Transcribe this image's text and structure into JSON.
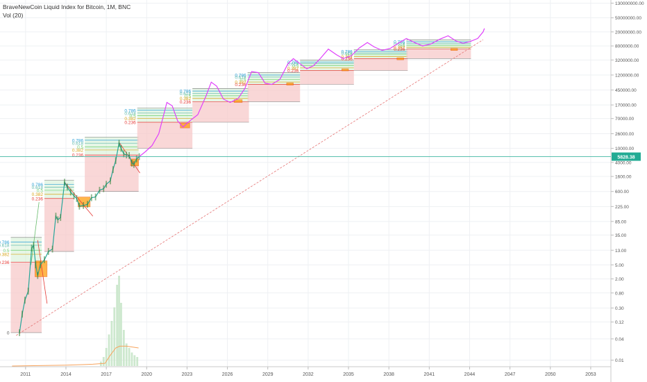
{
  "header": {
    "symbol_line": "BraveNewCoin Liquid Index for Bitcoin, 1M, BNC",
    "volume_line": "Vol (20)"
  },
  "colors": {
    "fib_box": "#f7c9c9",
    "fib_green": "#cdeecd",
    "fib_786": "#2a9fd6",
    "fib_618": "#5bb7a8",
    "fib_5": "#6fcf6f",
    "fib_382": "#d6a317",
    "fib_236": "#e53935",
    "price_tag": "#22ab94",
    "projection": "#e040fb",
    "buy_zone": "#ff9800",
    "volume": "#c8e6c9",
    "volume_ma": "#f7a35c",
    "trend": "#e57373"
  },
  "chart_data": {
    "type": "line",
    "title": "BraveNewCoin Liquid Index for Bitcoin, 1M, BNC",
    "y_scale": "log",
    "x_ticks": [
      "2011",
      "2014",
      "2017",
      "2020",
      "2023",
      "2026",
      "2029",
      "2032",
      "2035",
      "2038",
      "2041",
      "2044",
      "2047",
      "2050",
      "2053"
    ],
    "x_range": [
      2009.1,
      2054.5
    ],
    "y_ticks": [
      "0.01",
      "0.04",
      "0.12",
      "0.30",
      "0.80",
      "2.00",
      "5.00",
      "13.00",
      "35.00",
      "85.00",
      "225.00",
      "600.00",
      "1600.00",
      "4000.00",
      "10000.00",
      "26000.00",
      "70000.00",
      "170000.00",
      "450000.00",
      "1200000.00",
      "3200000.00",
      "8000000.00",
      "20000000.00",
      "50000000.00",
      "130000000.00"
    ],
    "y_range": [
      0.0065,
      160000000
    ],
    "current_price": "5828.38",
    "price_history": [
      [
        2010.55,
        0.06
      ],
      [
        2010.75,
        0.2
      ],
      [
        2010.95,
        0.5
      ],
      [
        2011.2,
        0.9
      ],
      [
        2011.45,
        15
      ],
      [
        2011.6,
        18
      ],
      [
        2011.75,
        5
      ],
      [
        2011.9,
        2.5
      ],
      [
        2012.1,
        5
      ],
      [
        2012.4,
        7
      ],
      [
        2012.7,
        12
      ],
      [
        2013.0,
        14
      ],
      [
        2013.25,
        120
      ],
      [
        2013.4,
        95
      ],
      [
        2013.6,
        110
      ],
      [
        2013.9,
        1100
      ],
      [
        2014.1,
        800
      ],
      [
        2014.35,
        580
      ],
      [
        2014.6,
        450
      ],
      [
        2014.8,
        380
      ],
      [
        2015.0,
        230
      ],
      [
        2015.3,
        240
      ],
      [
        2015.6,
        260
      ],
      [
        2015.9,
        400
      ],
      [
        2016.2,
        420
      ],
      [
        2016.5,
        650
      ],
      [
        2016.8,
        720
      ],
      [
        2017.0,
        960
      ],
      [
        2017.3,
        1200
      ],
      [
        2017.5,
        2500
      ],
      [
        2017.7,
        4500
      ],
      [
        2017.95,
        14000
      ],
      [
        2018.1,
        10000
      ],
      [
        2018.3,
        7000
      ],
      [
        2018.5,
        6500
      ],
      [
        2018.7,
        6300
      ],
      [
        2018.9,
        3800
      ],
      [
        2019.05,
        3500
      ],
      [
        2019.25,
        5000
      ],
      [
        2019.45,
        5828
      ]
    ],
    "projection": [
      [
        2019.45,
        5828
      ],
      [
        2019.9,
        8000
      ],
      [
        2020.4,
        12000
      ],
      [
        2020.9,
        26000
      ],
      [
        2021.5,
        200000
      ],
      [
        2021.9,
        160000
      ],
      [
        2022.3,
        60000
      ],
      [
        2022.7,
        40000
      ],
      [
        2023.2,
        60000
      ],
      [
        2023.8,
        90000
      ],
      [
        2024.4,
        300000
      ],
      [
        2024.8,
        750000
      ],
      [
        2025.2,
        580000
      ],
      [
        2025.7,
        250000
      ],
      [
        2026.2,
        200000
      ],
      [
        2026.8,
        260000
      ],
      [
        2027.3,
        500000
      ],
      [
        2027.8,
        1500000
      ],
      [
        2028.3,
        1400000
      ],
      [
        2028.8,
        700000
      ],
      [
        2029.3,
        650000
      ],
      [
        2029.9,
        900000
      ],
      [
        2030.5,
        2500000
      ],
      [
        2030.9,
        3500000
      ],
      [
        2031.4,
        2500000
      ],
      [
        2031.9,
        1800000
      ],
      [
        2032.4,
        2200000
      ],
      [
        2032.9,
        3500000
      ],
      [
        2033.5,
        6500000
      ],
      [
        2034.1,
        4500000
      ],
      [
        2034.6,
        3500000
      ],
      [
        2035.2,
        4200000
      ],
      [
        2035.8,
        7000000
      ],
      [
        2036.4,
        10000000
      ],
      [
        2036.9,
        7500000
      ],
      [
        2037.5,
        6000000
      ],
      [
        2038.1,
        6800000
      ],
      [
        2038.7,
        9500000
      ],
      [
        2039.3,
        13000000
      ],
      [
        2039.9,
        10000000
      ],
      [
        2040.5,
        8000000
      ],
      [
        2041.1,
        9000000
      ],
      [
        2041.8,
        12500000
      ],
      [
        2042.4,
        15500000
      ],
      [
        2043.0,
        11000000
      ],
      [
        2043.5,
        9500000
      ],
      [
        2044.0,
        10500000
      ],
      [
        2044.6,
        13000000
      ],
      [
        2045.0,
        20000000
      ],
      [
        2045.1,
        25000000
      ]
    ],
    "fib_boxes": [
      {
        "x0": 2009.9,
        "x1": 2012.2,
        "low": 0.06,
        "l236": 6,
        "l382": 10,
        "l5": 13,
        "l618": 18,
        "l786": 22,
        "top": 30,
        "labels": [
          "0.786",
          "0.618",
          "0.5",
          "0.382",
          "0.236",
          "0"
        ]
      },
      {
        "x0": 2012.4,
        "x1": 2014.6,
        "low": 12,
        "l236": 380,
        "l382": 500,
        "l5": 650,
        "l618": 800,
        "l786": 950,
        "top": 1250,
        "labels": [
          "0.786",
          "0.618",
          "0.5",
          "0.382",
          "0.236"
        ]
      },
      {
        "x0": 2015.4,
        "x1": 2019.4,
        "low": 600,
        "l236": 6500,
        "l382": 9000,
        "l5": 11000,
        "l618": 14000,
        "l786": 17000,
        "top": 21000,
        "labels": [
          "0.786",
          "0.618",
          "0.5",
          "0.382",
          "0.236"
        ]
      },
      {
        "x0": 2019.3,
        "x1": 2023.4,
        "low": 10000,
        "l236": 55000,
        "l382": 70000,
        "l5": 85000,
        "l618": 100000,
        "l786": 120000,
        "top": 140000,
        "labels": [
          "0.786",
          "0.618",
          "0.5",
          "0.382",
          "0.236"
        ]
      },
      {
        "x0": 2023.4,
        "x1": 2027.6,
        "low": 55000,
        "l236": 210000,
        "l382": 260000,
        "l5": 310000,
        "l618": 360000,
        "l786": 420000,
        "top": 500000,
        "labels": [
          "0.786",
          "0.618",
          "0.5",
          "0.382",
          "0.236"
        ]
      },
      {
        "x0": 2027.5,
        "x1": 2031.4,
        "low": 210000,
        "l236": 650000,
        "l382": 760000,
        "l5": 900000,
        "l618": 1050000,
        "l786": 1200000,
        "top": 1400000,
        "labels": [
          "0.786",
          "0.618",
          "0.5",
          "0.382",
          "0.236"
        ]
      },
      {
        "x0": 2031.4,
        "x1": 2035.4,
        "low": 650000,
        "l236": 1600000,
        "l382": 1900000,
        "l5": 2200000,
        "l618": 2500000,
        "l786": 2800000,
        "top": 3200000,
        "labels": [
          "0.786",
          "0.618",
          "0.5",
          "0.382",
          "0.236"
        ]
      },
      {
        "x0": 2035.4,
        "x1": 2039.4,
        "low": 1600000,
        "l236": 3500000,
        "l382": 4000000,
        "l5": 4500000,
        "l618": 5000000,
        "l786": 5600000,
        "top": 6300000,
        "labels": [
          "0.786",
          "0.618",
          "0.5",
          "0.382",
          "0.236"
        ]
      },
      {
        "x0": 2039.3,
        "x1": 2044.1,
        "low": 3500000,
        "l236": 6500000,
        "l382": 7300000,
        "l5": 8200000,
        "l618": 9200000,
        "l786": 10500000,
        "top": 12000000,
        "labels": [
          "0.786",
          "0.618",
          "0.5",
          "0.382",
          "0.236"
        ]
      }
    ],
    "buy_zones": [
      {
        "x0": 2011.7,
        "x1": 2012.6,
        "lo": 2.3,
        "hi": 6.5
      },
      {
        "x0": 2014.9,
        "x1": 2015.8,
        "lo": 220,
        "hi": 420
      },
      {
        "x0": 2018.8,
        "x1": 2019.4,
        "lo": 3200,
        "hi": 5000
      },
      {
        "x0": 2022.5,
        "x1": 2023.2,
        "lo": 38000,
        "hi": 52000
      },
      {
        "x0": 2026.5,
        "x1": 2027.1,
        "lo": 200000,
        "hi": 240000
      },
      {
        "x0": 2030.4,
        "x1": 2030.9,
        "lo": 620000,
        "hi": 720000
      },
      {
        "x0": 2034.5,
        "x1": 2035.0,
        "lo": 1600000,
        "hi": 1800000
      },
      {
        "x0": 2038.6,
        "x1": 2039.1,
        "lo": 3300000,
        "hi": 3700000
      },
      {
        "x0": 2042.6,
        "x1": 2043.1,
        "lo": 6200000,
        "hi": 6800000
      }
    ],
    "volume_bars": [
      [
        2016.6,
        0.05
      ],
      [
        2016.8,
        0.1
      ],
      [
        2017.0,
        0.2
      ],
      [
        2017.2,
        0.35
      ],
      [
        2017.4,
        0.5
      ],
      [
        2017.6,
        0.65
      ],
      [
        2017.8,
        0.9
      ],
      [
        2017.95,
        1.0
      ],
      [
        2018.1,
        0.7
      ],
      [
        2018.3,
        0.4
      ],
      [
        2018.5,
        0.25
      ],
      [
        2018.7,
        0.2
      ],
      [
        2018.9,
        0.15
      ],
      [
        2019.1,
        0.12
      ],
      [
        2019.3,
        0.1
      ]
    ],
    "volume_ma": [
      [
        2010.0,
        0.0
      ],
      [
        2012.0,
        0.005
      ],
      [
        2014.0,
        0.01
      ],
      [
        2016.0,
        0.02
      ],
      [
        2016.9,
        0.03
      ],
      [
        2017.3,
        0.12
      ],
      [
        2017.7,
        0.2
      ],
      [
        2018.0,
        0.22
      ],
      [
        2018.5,
        0.22
      ],
      [
        2019.4,
        0.2
      ]
    ]
  }
}
